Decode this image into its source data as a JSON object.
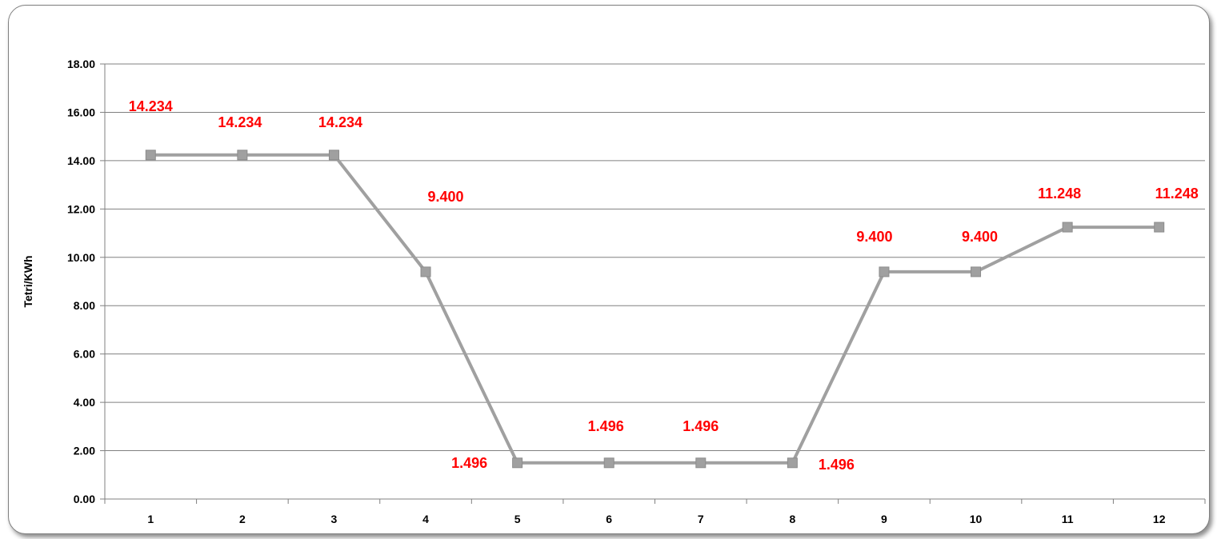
{
  "chart_data": {
    "type": "line",
    "title": "",
    "xlabel": "",
    "ylabel": "Tetri/KWh",
    "categories": [
      "1",
      "2",
      "3",
      "4",
      "5",
      "6",
      "7",
      "8",
      "9",
      "10",
      "11",
      "12"
    ],
    "series": [
      {
        "values": [
          14.234,
          14.234,
          14.234,
          9.4,
          1.496,
          1.496,
          1.496,
          1.496,
          9.4,
          9.4,
          11.248,
          11.248
        ],
        "labels": [
          "14.234",
          "14.234",
          "14.234",
          "9.400",
          "1.496",
          "1.496",
          "1.496",
          "1.496",
          "9.400",
          "9.400",
          "11.248",
          "11.248"
        ]
      }
    ],
    "ylim": [
      0,
      18
    ],
    "yticks": [
      "0.00",
      "2.00",
      "4.00",
      "6.00",
      "8.00",
      "10.00",
      "12.00",
      "14.00",
      "16.00",
      "18.00"
    ],
    "grid": true,
    "legend": "none",
    "colors": {
      "line": "#a0a0a0",
      "marker": "#a0a0a0",
      "data_label": "#ff0000",
      "grid": "#808080"
    }
  }
}
